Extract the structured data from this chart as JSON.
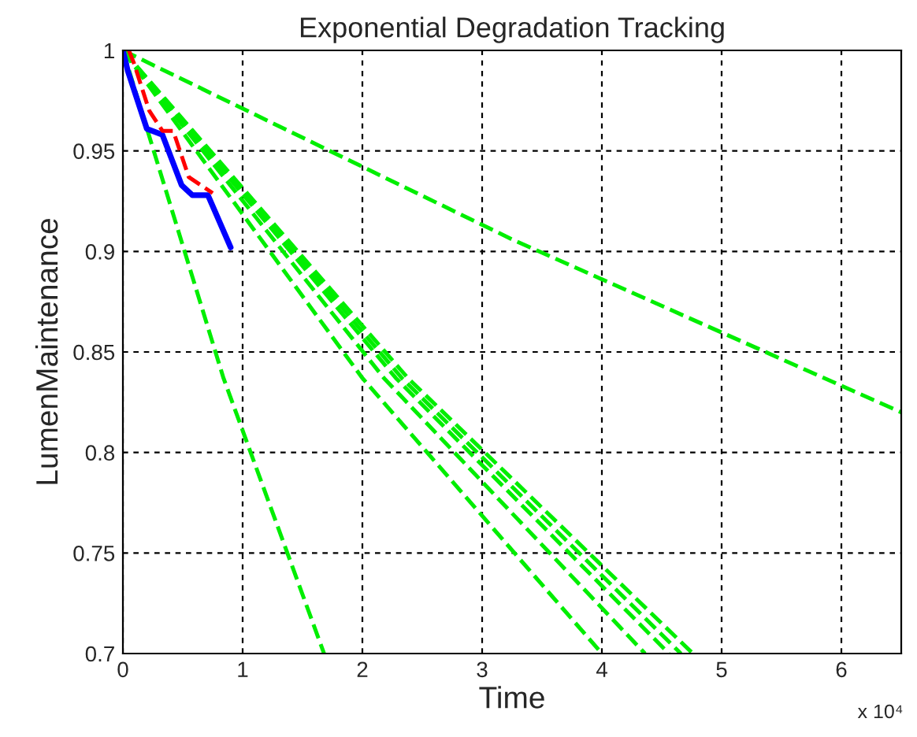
{
  "chart_data": {
    "type": "line",
    "title": "Exponential Degradation Tracking",
    "xlabel": "Time",
    "ylabel": "LumenMaintenance",
    "annotations": [
      "x 10⁴"
    ],
    "xlim": [
      0,
      6.5
    ],
    "ylim": [
      0.7,
      1
    ],
    "xticks": [
      0,
      1,
      2,
      3,
      4,
      5,
      6
    ],
    "yticks": [
      0.7,
      0.75,
      0.8,
      0.85,
      0.9,
      0.95,
      1
    ],
    "grid": true,
    "marker": "none",
    "series": [
      {
        "color": "#00ee00",
        "line_style": "dashed",
        "x": [
          0,
          0.84,
          1.68
        ],
        "values": [
          1,
          0.837,
          0.7
        ]
      },
      {
        "color": "#00ee00",
        "line_style": "dashed",
        "x": [
          0,
          2.0,
          4.0
        ],
        "values": [
          1,
          0.837,
          0.7
        ]
      },
      {
        "color": "#00ee00",
        "line_style": "dashed",
        "x": [
          0,
          2.18,
          4.36
        ],
        "values": [
          1,
          0.837,
          0.7
        ]
      },
      {
        "color": "#00ee00",
        "line_style": "dashed",
        "x": [
          0,
          2.28,
          4.56
        ],
        "values": [
          1,
          0.837,
          0.7
        ]
      },
      {
        "color": "#00ee00",
        "line_style": "dashed",
        "x": [
          0,
          2.33,
          4.66
        ],
        "values": [
          1,
          0.837,
          0.7
        ]
      },
      {
        "color": "#00ee00",
        "line_style": "dashed",
        "x": [
          0,
          2.38,
          4.76
        ],
        "values": [
          1,
          0.837,
          0.7
        ]
      },
      {
        "color": "#00ee00",
        "line_style": "dashed",
        "x": [
          0,
          3.25,
          6.5
        ],
        "values": [
          1,
          0.906,
          0.82
        ]
      },
      {
        "color": "#0000ff",
        "line_style": "solid",
        "x": [
          0,
          0.04,
          0.2,
          0.33,
          0.49,
          0.58,
          0.71,
          0.9
        ],
        "values": [
          1,
          0.99,
          0.961,
          0.958,
          0.933,
          0.928,
          0.928,
          0.902
        ]
      },
      {
        "color": "#ff0000",
        "line_style": "dashed",
        "x": [
          0.05,
          0.09,
          0.22,
          0.33,
          0.42,
          0.55,
          0.75
        ],
        "values": [
          1,
          0.994,
          0.97,
          0.96,
          0.96,
          0.937,
          0.929
        ]
      }
    ]
  }
}
